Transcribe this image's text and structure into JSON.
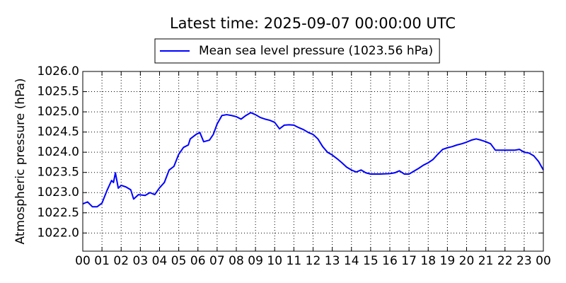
{
  "chart_data": {
    "type": "line",
    "title": "Latest time: 2025-09-07 00:00:00 UTC",
    "y_label": "Atmospheric pressure (hPa)",
    "x": [
      0,
      0.25,
      0.5,
      0.75,
      1,
      1.25,
      1.5,
      1.6,
      1.7,
      1.85,
      2,
      2.25,
      2.5,
      2.65,
      2.9,
      3.25,
      3.5,
      3.75,
      4,
      4.25,
      4.5,
      4.75,
      5,
      5.25,
      5.5,
      5.6,
      5.9,
      6.1,
      6.3,
      6.6,
      6.8,
      7,
      7.25,
      7.5,
      7.75,
      8,
      8.25,
      8.5,
      8.75,
      9,
      9.25,
      9.5,
      9.75,
      10,
      10.25,
      10.5,
      10.75,
      11,
      11.25,
      11.5,
      11.75,
      12,
      12.25,
      12.5,
      12.75,
      13,
      13.25,
      13.5,
      13.75,
      14,
      14.25,
      14.5,
      14.75,
      15,
      15.5,
      16,
      16.25,
      16.5,
      16.75,
      17,
      17.25,
      17.5,
      17.75,
      18,
      18.25,
      18.5,
      18.75,
      19,
      19.25,
      19.5,
      19.75,
      20,
      20.25,
      20.5,
      20.75,
      21,
      21.25,
      21.5,
      21.75,
      22,
      22.25,
      22.5,
      22.75,
      23,
      23.25,
      23.5,
      23.75,
      24
    ],
    "series": [
      {
        "name": "Mean sea level pressure (1023.56 hPa)",
        "color": "#0000ff",
        "values": [
          1022.72,
          1022.77,
          1022.65,
          1022.65,
          1022.74,
          1023.04,
          1023.3,
          1023.25,
          1023.49,
          1023.11,
          1023.18,
          1023.14,
          1023.07,
          1022.84,
          1022.95,
          1022.93,
          1023.0,
          1022.95,
          1023.12,
          1023.25,
          1023.56,
          1023.65,
          1023.95,
          1024.12,
          1024.18,
          1024.33,
          1024.44,
          1024.49,
          1024.26,
          1024.3,
          1024.44,
          1024.7,
          1024.91,
          1024.93,
          1024.91,
          1024.88,
          1024.82,
          1024.91,
          1024.98,
          1024.93,
          1024.86,
          1024.82,
          1024.79,
          1024.74,
          1024.58,
          1024.67,
          1024.68,
          1024.67,
          1024.61,
          1024.56,
          1024.49,
          1024.44,
          1024.33,
          1024.14,
          1024.0,
          1023.93,
          1023.84,
          1023.74,
          1023.63,
          1023.56,
          1023.51,
          1023.56,
          1023.49,
          1023.46,
          1023.46,
          1023.47,
          1023.49,
          1023.54,
          1023.46,
          1023.46,
          1023.53,
          1023.6,
          1023.68,
          1023.74,
          1023.82,
          1023.95,
          1024.07,
          1024.11,
          1024.14,
          1024.18,
          1024.21,
          1024.25,
          1024.3,
          1024.33,
          1024.3,
          1024.26,
          1024.21,
          1024.05,
          1024.05,
          1024.05,
          1024.05,
          1024.05,
          1024.07,
          1024.0,
          1023.98,
          1023.91,
          1023.77,
          1023.56
        ]
      }
    ],
    "xlim": [
      0,
      24
    ],
    "xticks": [
      {
        "value": 0,
        "label": "00"
      },
      {
        "value": 1,
        "label": "01"
      },
      {
        "value": 2,
        "label": "02"
      },
      {
        "value": 3,
        "label": "03"
      },
      {
        "value": 4,
        "label": "04"
      },
      {
        "value": 5,
        "label": "05"
      },
      {
        "value": 6,
        "label": "06"
      },
      {
        "value": 7,
        "label": "07"
      },
      {
        "value": 8,
        "label": "08"
      },
      {
        "value": 9,
        "label": "09"
      },
      {
        "value": 10,
        "label": "10"
      },
      {
        "value": 11,
        "label": "11"
      },
      {
        "value": 12,
        "label": "12"
      },
      {
        "value": 13,
        "label": "13"
      },
      {
        "value": 14,
        "label": "14"
      },
      {
        "value": 15,
        "label": "15"
      },
      {
        "value": 16,
        "label": "16"
      },
      {
        "value": 17,
        "label": "17"
      },
      {
        "value": 18,
        "label": "18"
      },
      {
        "value": 19,
        "label": "19"
      },
      {
        "value": 20,
        "label": "20"
      },
      {
        "value": 21,
        "label": "21"
      },
      {
        "value": 22,
        "label": "22"
      },
      {
        "value": 23,
        "label": "23"
      },
      {
        "value": 24,
        "label": "00"
      }
    ],
    "ylim": [
      1021.55,
      1026.0
    ],
    "yticks": [
      {
        "value": 1022,
        "label": "1022.0"
      },
      {
        "value": 1022.5,
        "label": "1022.5"
      },
      {
        "value": 1023,
        "label": "1023.0"
      },
      {
        "value": 1023.5,
        "label": "1023.5"
      },
      {
        "value": 1024,
        "label": "1024.0"
      },
      {
        "value": 1024.5,
        "label": "1024.5"
      },
      {
        "value": 1025,
        "label": "1025.0"
      },
      {
        "value": 1025.5,
        "label": "1025.5"
      },
      {
        "value": 1026,
        "label": "1026.0"
      }
    ],
    "grid": true,
    "legend": "upper center"
  }
}
